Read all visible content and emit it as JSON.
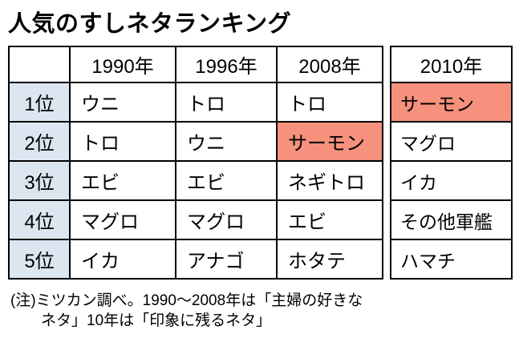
{
  "chart_data": {
    "type": "table",
    "title": "人気のすしネタランキング",
    "columns": [
      "",
      "1990年",
      "1996年",
      "2008年",
      "2010年"
    ],
    "rows": [
      [
        "1位",
        "ウニ",
        "トロ",
        "トロ",
        "サーモン"
      ],
      [
        "2位",
        "トロ",
        "ウニ",
        "サーモン",
        "マグロ"
      ],
      [
        "3位",
        "エビ",
        "エビ",
        "ネギトロ",
        "イカ"
      ],
      [
        "4位",
        "マグロ",
        "マグロ",
        "エビ",
        "その他軍艦"
      ],
      [
        "5位",
        "イカ",
        "アナゴ",
        "ホタテ",
        "ハマチ"
      ]
    ],
    "highlighted_cells": [
      {
        "row": "2位",
        "column": "2008年",
        "value": "サーモン"
      },
      {
        "row": "1位",
        "column": "2010年",
        "value": "サーモン"
      }
    ],
    "layout_hints": {
      "rank_column_shaded": true,
      "column_2010_detached": true
    }
  },
  "note": {
    "line1": "(注)ミツカン調べ。1990〜2008年は「主婦の好きな",
    "line2": "ネタ」10年は「印象に残るネタ」"
  },
  "colors": {
    "highlight": "#f5917c",
    "rank_bg": "#dce6f0",
    "border": "#000000"
  }
}
